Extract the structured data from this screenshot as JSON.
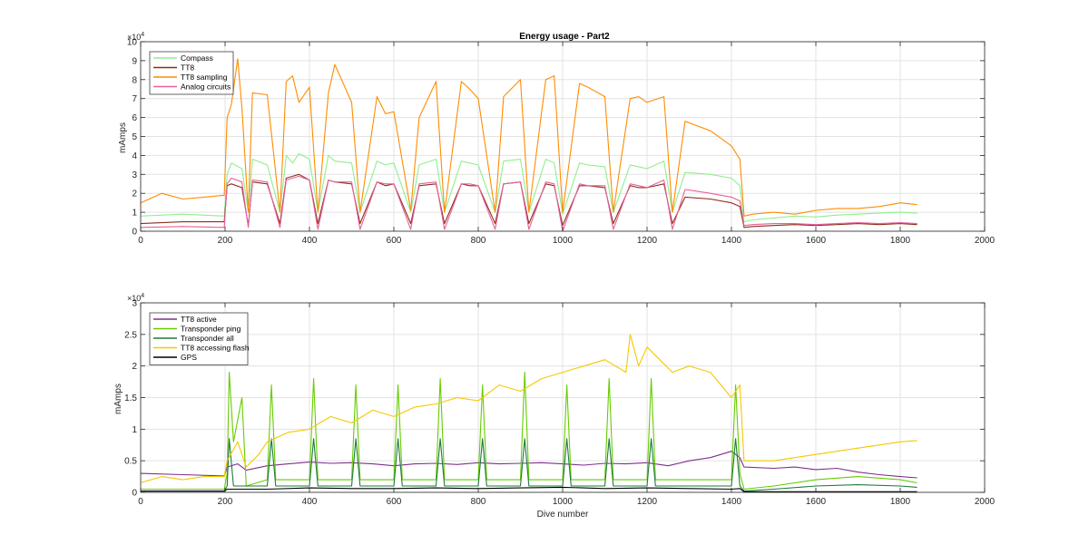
{
  "figure": {
    "background": "#ffffff"
  },
  "chart_data": [
    {
      "type": "line",
      "title": "Energy usage - Part2",
      "xlabel": "",
      "ylabel": "mAmps",
      "exponent_label": "×10",
      "exponent_power": "4",
      "xlim": [
        0,
        2000
      ],
      "ylim": [
        0,
        100000
      ],
      "xticks": [
        0,
        200,
        400,
        600,
        800,
        1000,
        1200,
        1400,
        1600,
        1800,
        2000
      ],
      "xtick_labels": [
        "0",
        "200",
        "400",
        "600",
        "800",
        "1000",
        "1200",
        "1400",
        "1600",
        "1800",
        "2000"
      ],
      "yticks": [
        0,
        10000,
        20000,
        30000,
        40000,
        50000,
        60000,
        70000,
        80000,
        90000,
        100000
      ],
      "ytick_labels": [
        "0",
        "1",
        "2",
        "3",
        "4",
        "5",
        "6",
        "7",
        "8",
        "9",
        "10"
      ],
      "grid": true,
      "legend_position": "top-left",
      "series": [
        {
          "name": "Compass",
          "color": "#90ee90",
          "x": [
            0,
            100,
            198,
            205,
            215,
            240,
            255,
            265,
            300,
            330,
            345,
            360,
            375,
            400,
            420,
            445,
            460,
            500,
            520,
            560,
            580,
            600,
            640,
            660,
            700,
            720,
            760,
            780,
            800,
            840,
            860,
            900,
            920,
            960,
            980,
            1000,
            1040,
            1060,
            1100,
            1120,
            1160,
            1180,
            1200,
            1240,
            1260,
            1290,
            1350,
            1400,
            1420,
            1430,
            1450,
            1500,
            1550,
            1600,
            1650,
            1700,
            1750,
            1800,
            1840
          ],
          "y": [
            8000,
            9000,
            8000,
            30000,
            36000,
            33000,
            10000,
            38000,
            35000,
            10000,
            40000,
            36000,
            41000,
            38000,
            10000,
            40000,
            37000,
            36000,
            10000,
            37000,
            35000,
            36000,
            10000,
            35000,
            38000,
            10000,
            37000,
            36000,
            35000,
            10000,
            37000,
            38000,
            10000,
            38000,
            36000,
            9000,
            36000,
            35000,
            34000,
            10000,
            35000,
            34000,
            33000,
            37000,
            10000,
            31000,
            30000,
            28000,
            24000,
            5000,
            6000,
            7000,
            8000,
            7500,
            8500,
            9000,
            9500,
            10000,
            9500
          ]
        },
        {
          "name": "TT8",
          "color": "#8b2e1a",
          "x": [
            0,
            100,
            198,
            205,
            215,
            240,
            255,
            265,
            300,
            330,
            345,
            360,
            375,
            400,
            420,
            445,
            460,
            500,
            520,
            560,
            580,
            600,
            640,
            660,
            700,
            720,
            760,
            780,
            800,
            840,
            860,
            900,
            920,
            960,
            980,
            1000,
            1040,
            1060,
            1100,
            1120,
            1160,
            1180,
            1200,
            1240,
            1260,
            1290,
            1350,
            1400,
            1420,
            1430,
            1450,
            1500,
            1550,
            1600,
            1650,
            1700,
            1750,
            1800,
            1840
          ],
          "y": [
            4000,
            5000,
            5000,
            24000,
            25000,
            23000,
            3000,
            26000,
            25000,
            4000,
            28000,
            29000,
            30000,
            27000,
            4000,
            27000,
            26000,
            25000,
            4000,
            26000,
            24000,
            25000,
            4000,
            24000,
            25000,
            4000,
            25000,
            24000,
            24000,
            4000,
            25000,
            26000,
            4000,
            25000,
            24000,
            3000,
            24000,
            24000,
            23000,
            4000,
            24000,
            23000,
            23000,
            25000,
            4000,
            18000,
            17000,
            15000,
            13000,
            2000,
            2500,
            3000,
            3500,
            3000,
            3500,
            4000,
            3500,
            4000,
            3500
          ]
        },
        {
          "name": "TT8 sampling",
          "color": "#ff8c00",
          "x": [
            0,
            50,
            100,
            150,
            198,
            205,
            215,
            230,
            240,
            255,
            265,
            300,
            330,
            345,
            360,
            375,
            400,
            420,
            445,
            460,
            500,
            520,
            560,
            580,
            600,
            640,
            660,
            700,
            720,
            760,
            780,
            800,
            840,
            860,
            900,
            920,
            960,
            980,
            1000,
            1040,
            1060,
            1100,
            1120,
            1160,
            1180,
            1200,
            1240,
            1260,
            1290,
            1350,
            1400,
            1420,
            1430,
            1450,
            1500,
            1550,
            1600,
            1650,
            1700,
            1750,
            1800,
            1840
          ],
          "y": [
            15000,
            20000,
            17000,
            18000,
            19000,
            60000,
            67000,
            91000,
            65000,
            10000,
            73000,
            72000,
            10000,
            79000,
            82000,
            68000,
            76000,
            10000,
            73000,
            88000,
            68000,
            10000,
            71000,
            62000,
            63000,
            11000,
            60000,
            79000,
            10000,
            79000,
            75000,
            70000,
            10000,
            71000,
            80000,
            10000,
            80000,
            82000,
            10000,
            78000,
            76000,
            71000,
            10000,
            70000,
            71000,
            68000,
            71000,
            10000,
            58000,
            53000,
            45000,
            38000,
            8000,
            9000,
            10000,
            9000,
            11000,
            12000,
            12000,
            13000,
            15000,
            14000
          ]
        },
        {
          "name": "Analog circuits",
          "color": "#e8609a",
          "x": [
            0,
            100,
            198,
            205,
            215,
            240,
            255,
            265,
            300,
            330,
            345,
            360,
            375,
            400,
            420,
            445,
            460,
            500,
            520,
            560,
            580,
            600,
            640,
            660,
            700,
            720,
            760,
            780,
            800,
            840,
            860,
            900,
            920,
            960,
            980,
            1000,
            1040,
            1060,
            1100,
            1120,
            1160,
            1180,
            1200,
            1240,
            1260,
            1290,
            1350,
            1400,
            1420,
            1430,
            1450,
            1500,
            1550,
            1600,
            1650,
            1700,
            1750,
            1800,
            1840
          ],
          "y": [
            2000,
            2500,
            2000,
            25000,
            28000,
            26000,
            2000,
            27000,
            26000,
            2000,
            27000,
            28000,
            29000,
            27000,
            1000,
            27000,
            26000,
            26000,
            1000,
            26000,
            25000,
            25000,
            1000,
            25000,
            26000,
            1000,
            25000,
            25000,
            24000,
            1000,
            25000,
            26000,
            1000,
            26000,
            25000,
            0,
            25000,
            24000,
            24000,
            1000,
            25000,
            24000,
            23000,
            27000,
            1000,
            22000,
            20000,
            18000,
            16000,
            3000,
            3500,
            4000,
            4000,
            3500,
            4000,
            4500,
            4000,
            4500,
            4000
          ]
        }
      ]
    },
    {
      "type": "line",
      "title": "",
      "xlabel": "Dive number",
      "ylabel": "mAmps",
      "exponent_label": "×10",
      "exponent_power": "4",
      "xlim": [
        0,
        2000
      ],
      "ylim": [
        0,
        30000
      ],
      "xticks": [
        0,
        200,
        400,
        600,
        800,
        1000,
        1200,
        1400,
        1600,
        1800,
        2000
      ],
      "xtick_labels": [
        "0",
        "200",
        "400",
        "600",
        "800",
        "1000",
        "1200",
        "1400",
        "1600",
        "1800",
        "2000"
      ],
      "yticks": [
        0,
        5000,
        10000,
        15000,
        20000,
        25000,
        30000
      ],
      "ytick_labels": [
        "0",
        "0.5",
        "1",
        "1.5",
        "2",
        "2.5",
        "3"
      ],
      "grid": true,
      "legend_position": "top-left",
      "series": [
        {
          "name": "TT8 active",
          "color": "#7e2f8e",
          "x": [
            0,
            100,
            198,
            205,
            230,
            250,
            300,
            350,
            400,
            450,
            500,
            550,
            600,
            650,
            700,
            750,
            800,
            850,
            900,
            950,
            1000,
            1050,
            1100,
            1150,
            1200,
            1250,
            1300,
            1350,
            1400,
            1420,
            1430,
            1500,
            1550,
            1600,
            1650,
            1700,
            1750,
            1800,
            1840
          ],
          "y": [
            3000,
            2800,
            2600,
            4000,
            4500,
            3500,
            4200,
            4500,
            4800,
            4600,
            4700,
            4500,
            4200,
            4500,
            4600,
            4400,
            4700,
            4500,
            4600,
            4700,
            4500,
            4300,
            4600,
            4500,
            4700,
            4200,
            5000,
            5500,
            6500,
            5500,
            4000,
            3800,
            4000,
            3600,
            3800,
            3200,
            2800,
            2500,
            2300
          ]
        },
        {
          "name": "Transponder ping",
          "color": "#66cc00",
          "x": [
            0,
            100,
            198,
            205,
            210,
            220,
            240,
            250,
            300,
            310,
            320,
            400,
            410,
            420,
            500,
            510,
            520,
            600,
            610,
            620,
            700,
            710,
            720,
            800,
            810,
            820,
            900,
            910,
            920,
            1000,
            1010,
            1020,
            1100,
            1110,
            1120,
            1200,
            1210,
            1220,
            1300,
            1400,
            1410,
            1420,
            1430,
            1500,
            1600,
            1700,
            1800,
            1840
          ],
          "y": [
            500,
            500,
            500,
            3000,
            19000,
            8000,
            15000,
            1000,
            2000,
            17000,
            2000,
            2000,
            18000,
            2000,
            2000,
            17000,
            2000,
            2000,
            17000,
            2000,
            2000,
            18000,
            2000,
            2000,
            17000,
            2000,
            2000,
            19000,
            2000,
            2000,
            17000,
            2000,
            2000,
            18000,
            2000,
            2000,
            18000,
            2000,
            2000,
            2000,
            17000,
            3000,
            500,
            1000,
            2000,
            2500,
            2000,
            1500
          ]
        },
        {
          "name": "Transponder all",
          "color": "#1e7a3c",
          "x": [
            0,
            100,
            198,
            205,
            210,
            220,
            300,
            310,
            320,
            400,
            410,
            420,
            500,
            510,
            520,
            600,
            610,
            620,
            700,
            710,
            720,
            800,
            810,
            820,
            900,
            910,
            920,
            1000,
            1010,
            1020,
            1100,
            1110,
            1120,
            1200,
            1210,
            1220,
            1300,
            1400,
            1410,
            1420,
            1430,
            1500,
            1600,
            1700,
            1800,
            1840
          ],
          "y": [
            200,
            200,
            200,
            1000,
            8500,
            1000,
            1000,
            8500,
            1000,
            1000,
            8500,
            1000,
            1000,
            8500,
            1000,
            1000,
            8500,
            1000,
            1000,
            8500,
            1000,
            1000,
            8500,
            1000,
            1000,
            8500,
            1000,
            1000,
            8500,
            1000,
            1000,
            8500,
            1000,
            1000,
            8500,
            1000,
            1000,
            1000,
            8500,
            1000,
            200,
            500,
            1000,
            1200,
            1000,
            800
          ]
        },
        {
          "name": "TT8 accessing flash",
          "color": "#f5c800",
          "x": [
            0,
            50,
            100,
            150,
            198,
            205,
            230,
            250,
            280,
            300,
            350,
            400,
            450,
            500,
            550,
            600,
            650,
            700,
            750,
            800,
            850,
            900,
            950,
            1000,
            1050,
            1100,
            1150,
            1160,
            1180,
            1200,
            1230,
            1260,
            1300,
            1350,
            1400,
            1420,
            1430,
            1500,
            1550,
            1600,
            1650,
            1700,
            1750,
            1800,
            1840
          ],
          "y": [
            1500,
            2500,
            2000,
            2500,
            2500,
            5000,
            8000,
            4000,
            6000,
            8000,
            9500,
            10000,
            12000,
            11000,
            13000,
            12000,
            13500,
            14000,
            15000,
            14500,
            17000,
            16000,
            18000,
            19000,
            20000,
            21000,
            19000,
            25000,
            20000,
            23000,
            21000,
            19000,
            20000,
            19000,
            15000,
            17000,
            5000,
            5000,
            5500,
            6000,
            6500,
            7000,
            7500,
            8000,
            8200
          ]
        },
        {
          "name": "GPS",
          "color": "#000000",
          "x": [
            0,
            100,
            198,
            205,
            300,
            400,
            500,
            600,
            700,
            800,
            900,
            1000,
            1100,
            1200,
            1300,
            1400,
            1420,
            1430,
            1500,
            1600,
            1700,
            1800,
            1840
          ],
          "y": [
            200,
            200,
            200,
            500,
            500,
            700,
            600,
            600,
            700,
            600,
            700,
            800,
            600,
            700,
            600,
            500,
            600,
            100,
            100,
            100,
            100,
            100,
            100
          ]
        }
      ]
    }
  ]
}
